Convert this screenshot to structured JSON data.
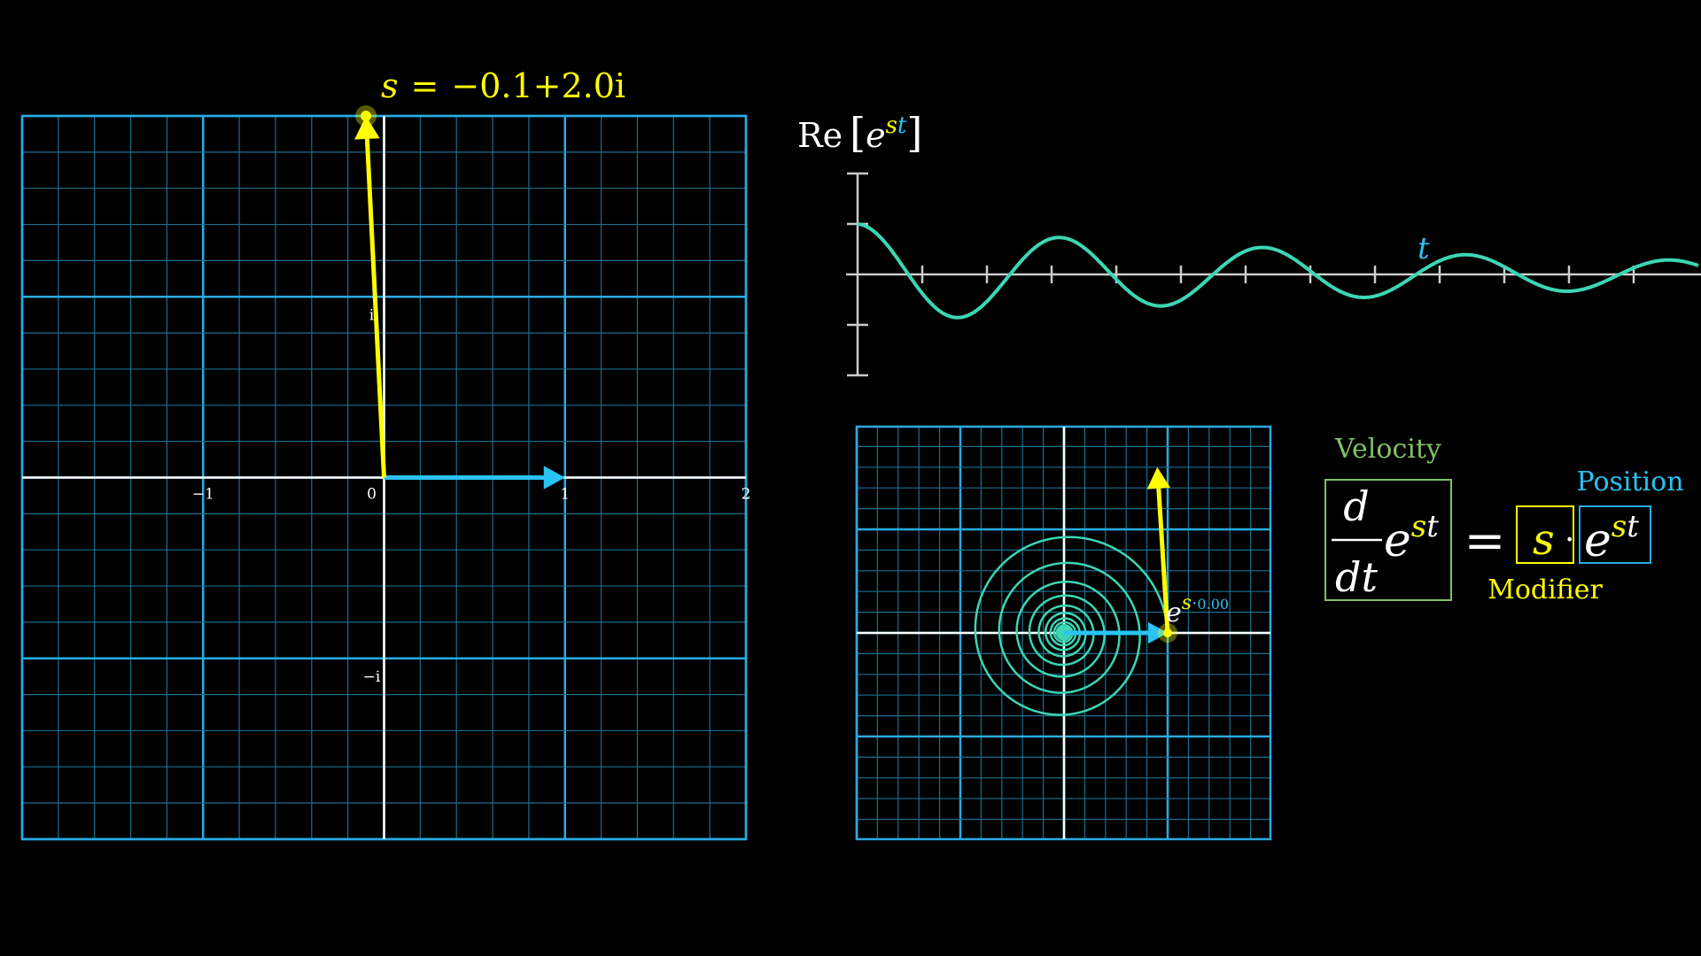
{
  "colors": {
    "background": "#000000",
    "grid_major": "#29ABE2",
    "grid_minor": "#1B6E91",
    "axis": "#FFFFFF",
    "yellow": "#FFFF00",
    "blue": "#29C3F2",
    "teal": "#3CD6B4",
    "green": "#83C167",
    "label_white": "#FFFFFF"
  },
  "complex_plane": {
    "s_label": {
      "lhs": "s",
      "eq": "=",
      "value": "−0.1+2.0i"
    },
    "tick_labels": {
      "x": [
        {
          "value": -1,
          "text": "−1"
        },
        {
          "value": 0,
          "text": "0"
        },
        {
          "value": 1,
          "text": "1"
        },
        {
          "value": 2,
          "text": "2"
        }
      ],
      "y": [
        {
          "value": 1,
          "text": "i"
        },
        {
          "value": -1,
          "text": "−i"
        }
      ]
    },
    "x_range": [
      -2,
      2
    ],
    "y_range": [
      -2,
      2
    ],
    "s_vector": {
      "re": -0.1,
      "im": 2.0
    },
    "unit_vector": {
      "re": 1,
      "im": 0
    }
  },
  "graph": {
    "label": {
      "re": "Re",
      "base": "e",
      "exp_s": "s",
      "exp_t": "t"
    },
    "t_label": "t",
    "x_range": [
      0,
      13
    ],
    "y_range": [
      -2,
      2
    ],
    "decay": -0.1,
    "omega": 2.0
  },
  "spiral_plane": {
    "exp_label": {
      "base": "e",
      "exp_s": "s",
      "dot": "·",
      "value": "0.00"
    },
    "t_max": 60
  },
  "equation": {
    "velocity_label": "Velocity",
    "position_label": "Position",
    "modifier_label": "Modifier",
    "d": "d",
    "dt": "dt",
    "base": "e",
    "exp_s": "s",
    "exp_t": "t",
    "equals": "=",
    "s": "s",
    "dot": "·"
  }
}
